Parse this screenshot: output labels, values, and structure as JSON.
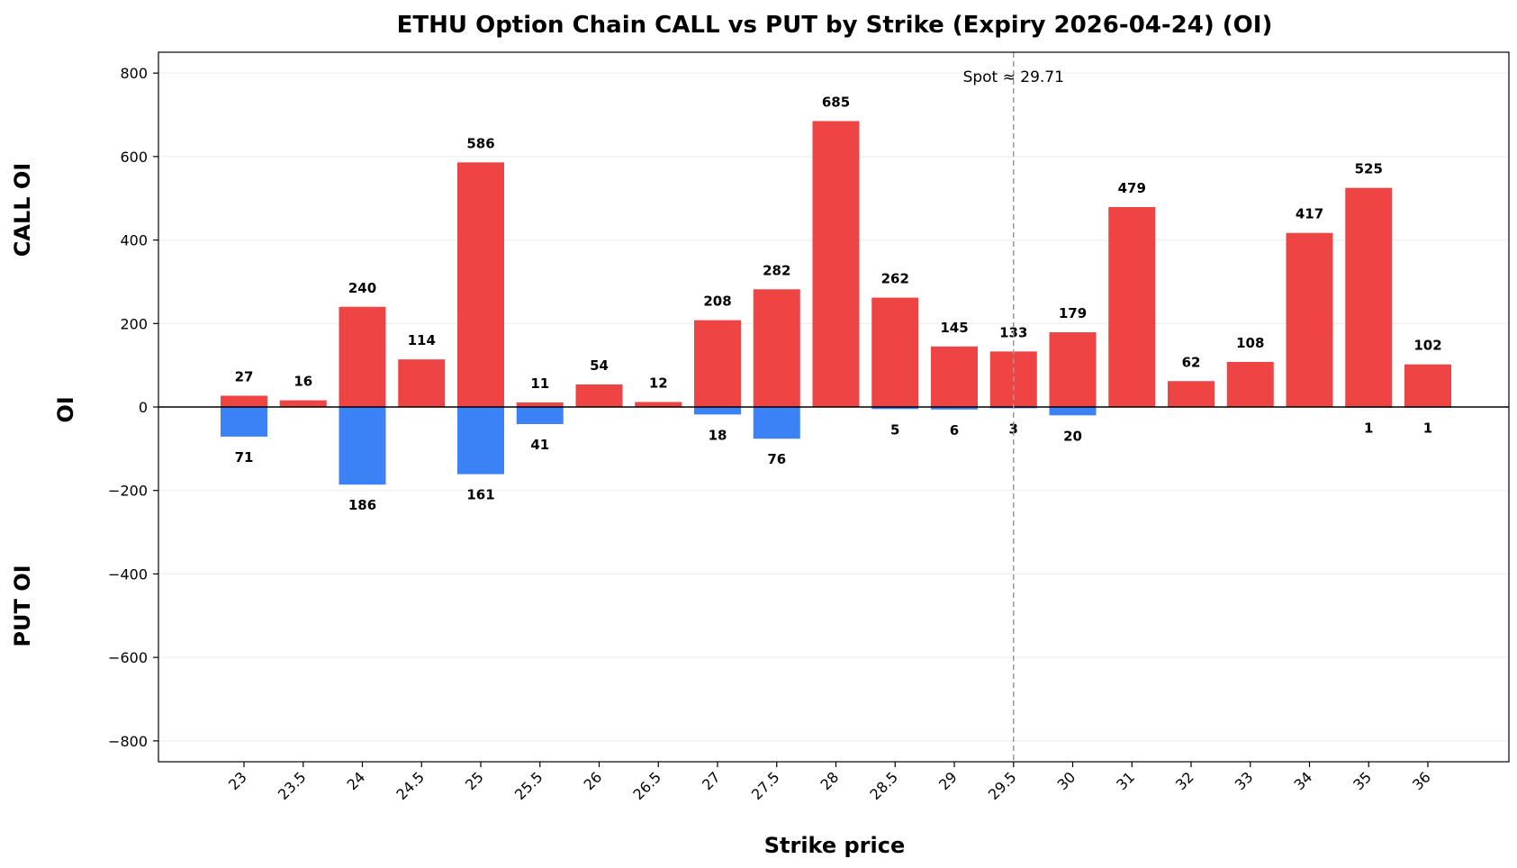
{
  "chart_data": {
    "type": "bar",
    "title": "ETHU Option Chain CALL vs PUT by Strike (Expiry 2026-04-24) (OI)",
    "xlabel": "Strike price",
    "ylabel": "OI",
    "call_side_label": "CALL OI",
    "put_side_label": "PUT OI",
    "categories": [
      "23",
      "23.5",
      "24",
      "24.5",
      "25",
      "25.5",
      "26",
      "26.5",
      "27",
      "27.5",
      "28",
      "28.5",
      "29",
      "29.5",
      "30",
      "31",
      "32",
      "33",
      "34",
      "35",
      "36"
    ],
    "series": [
      {
        "name": "CALL",
        "color": "#ef4444",
        "values": [
          27,
          16,
          240,
          114,
          586,
          11,
          54,
          12,
          208,
          282,
          685,
          262,
          145,
          133,
          179,
          479,
          62,
          108,
          417,
          525,
          102
        ],
        "labels": [
          "27",
          "16",
          "240",
          "114",
          "586",
          "11",
          "54",
          "12",
          "208",
          "282",
          "685",
          "262",
          "145",
          "133",
          "179",
          "479",
          "62",
          "108",
          "417",
          "525",
          "102"
        ]
      },
      {
        "name": "PUT",
        "color": "#3b82f6",
        "values": [
          71,
          0,
          186,
          0,
          161,
          41,
          0,
          0,
          18,
          76,
          0,
          5,
          6,
          3,
          20,
          0,
          0,
          0,
          0,
          1,
          1
        ],
        "labels": [
          "71",
          "",
          "186",
          "",
          "161",
          "41",
          "",
          "",
          "18",
          "76",
          "",
          "5",
          "6",
          "3",
          "20",
          "",
          "",
          "",
          "",
          "1",
          "1"
        ]
      }
    ],
    "ylim": [
      -850,
      850
    ],
    "yticks": [
      800,
      600,
      400,
      200,
      0,
      -200,
      -400,
      -600,
      -800
    ],
    "ytick_labels": [
      "800",
      "600",
      "400",
      "200",
      "0",
      "−200",
      "−400",
      "−600",
      "−800"
    ],
    "spot": {
      "value": 29.71,
      "label": "Spot ≈ 29.71",
      "category_index": 13
    },
    "grid": true,
    "legend": "none"
  }
}
